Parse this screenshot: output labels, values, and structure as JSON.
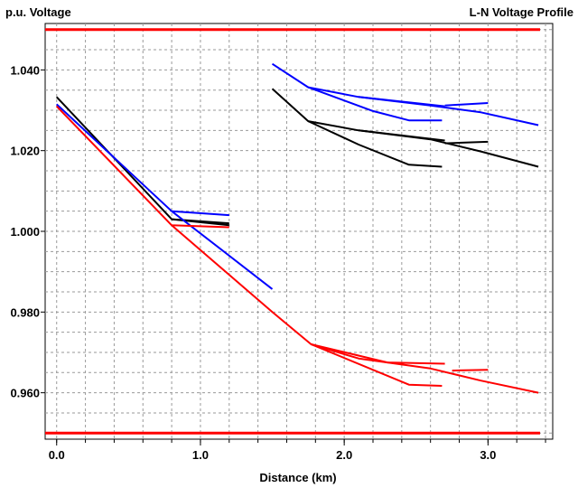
{
  "chart_data": {
    "type": "line",
    "title_left": "p.u. Voltage",
    "title_right": "L-N Voltage Profile",
    "xlabel": "Distance (km)",
    "ylabel": "",
    "xlim": [
      -0.08,
      3.45
    ],
    "ylim": [
      0.9485,
      1.0515
    ],
    "grid": true,
    "x_ticks": [
      {
        "value": 0.0,
        "label": "0.0"
      },
      {
        "value": 1.0,
        "label": "1.0"
      },
      {
        "value": 2.0,
        "label": "2.0"
      },
      {
        "value": 3.0,
        "label": "3.0"
      }
    ],
    "y_ticks": [
      {
        "value": 1.04,
        "label": "1.040"
      },
      {
        "value": 1.02,
        "label": "1.020"
      },
      {
        "value": 1.0,
        "label": "1.000"
      },
      {
        "value": 0.98,
        "label": "0.980"
      },
      {
        "value": 0.96,
        "label": "0.960"
      }
    ],
    "limit_lines": [
      {
        "y": 1.05,
        "color": "#ff0000"
      },
      {
        "y": 0.95,
        "color": "#ff0000"
      }
    ],
    "series": [
      {
        "color": "#000000",
        "points": [
          [
            0.0,
            1.0333
          ],
          [
            0.8,
            1.003
          ],
          [
            1.2,
            1.002
          ]
        ]
      },
      {
        "color": "#000000",
        "points": [
          [
            0.8,
            1.003
          ],
          [
            1.2,
            1.0015
          ]
        ]
      },
      {
        "color": "#0000ff",
        "points": [
          [
            0.0,
            1.0315
          ],
          [
            0.8,
            1.005
          ],
          [
            1.2,
            1.004
          ]
        ]
      },
      {
        "color": "#0000ff",
        "points": [
          [
            0.8,
            1.005
          ],
          [
            1.5,
            0.9857
          ]
        ]
      },
      {
        "color": "#ff0000",
        "points": [
          [
            0.0,
            1.031
          ],
          [
            0.8,
            1.0015
          ],
          [
            1.2,
            1.001
          ]
        ]
      },
      {
        "color": "#ff0000",
        "points": [
          [
            0.8,
            1.0015
          ],
          [
            1.5,
            0.98
          ],
          [
            1.77,
            0.972
          ],
          [
            2.3,
            0.9675
          ],
          [
            2.7,
            0.9672
          ]
        ]
      },
      {
        "color": "#ff0000",
        "points": [
          [
            1.77,
            0.972
          ],
          [
            2.45,
            0.962
          ],
          [
            2.68,
            0.9617
          ]
        ]
      },
      {
        "color": "#ff0000",
        "points": [
          [
            1.77,
            0.972
          ],
          [
            2.1,
            0.9685
          ],
          [
            2.6,
            0.966
          ],
          [
            2.95,
            0.963
          ],
          [
            3.35,
            0.96
          ]
        ]
      },
      {
        "color": "#ff0000",
        "points": [
          [
            2.75,
            0.9655
          ],
          [
            3.0,
            0.9657
          ]
        ]
      },
      {
        "color": "#000000",
        "points": [
          [
            1.5,
            1.0353
          ],
          [
            1.75,
            1.0273
          ],
          [
            2.1,
            1.025
          ],
          [
            2.7,
            1.0225
          ]
        ]
      },
      {
        "color": "#000000",
        "points": [
          [
            1.75,
            1.0273
          ],
          [
            2.1,
            1.0215
          ],
          [
            2.45,
            1.0165
          ],
          [
            2.68,
            1.016
          ]
        ]
      },
      {
        "color": "#000000",
        "points": [
          [
            2.1,
            1.025
          ],
          [
            2.6,
            1.0228
          ],
          [
            2.95,
            1.0198
          ],
          [
            3.35,
            1.016
          ]
        ]
      },
      {
        "color": "#000000",
        "points": [
          [
            2.7,
            1.0218
          ],
          [
            3.0,
            1.0222
          ]
        ]
      },
      {
        "color": "#0000ff",
        "points": [
          [
            1.5,
            1.0415
          ],
          [
            1.75,
            1.0357
          ],
          [
            2.1,
            1.0333
          ],
          [
            2.7,
            1.031
          ]
        ]
      },
      {
        "color": "#0000ff",
        "points": [
          [
            1.75,
            1.0357
          ],
          [
            2.2,
            1.0298
          ],
          [
            2.45,
            1.0275
          ],
          [
            2.68,
            1.0275
          ]
        ]
      },
      {
        "color": "#0000ff",
        "points": [
          [
            2.1,
            1.0333
          ],
          [
            2.6,
            1.0312
          ],
          [
            2.95,
            1.0295
          ],
          [
            3.35,
            1.0263
          ]
        ]
      },
      {
        "color": "#0000ff",
        "points": [
          [
            2.7,
            1.0312
          ],
          [
            3.0,
            1.0318
          ]
        ]
      }
    ]
  }
}
